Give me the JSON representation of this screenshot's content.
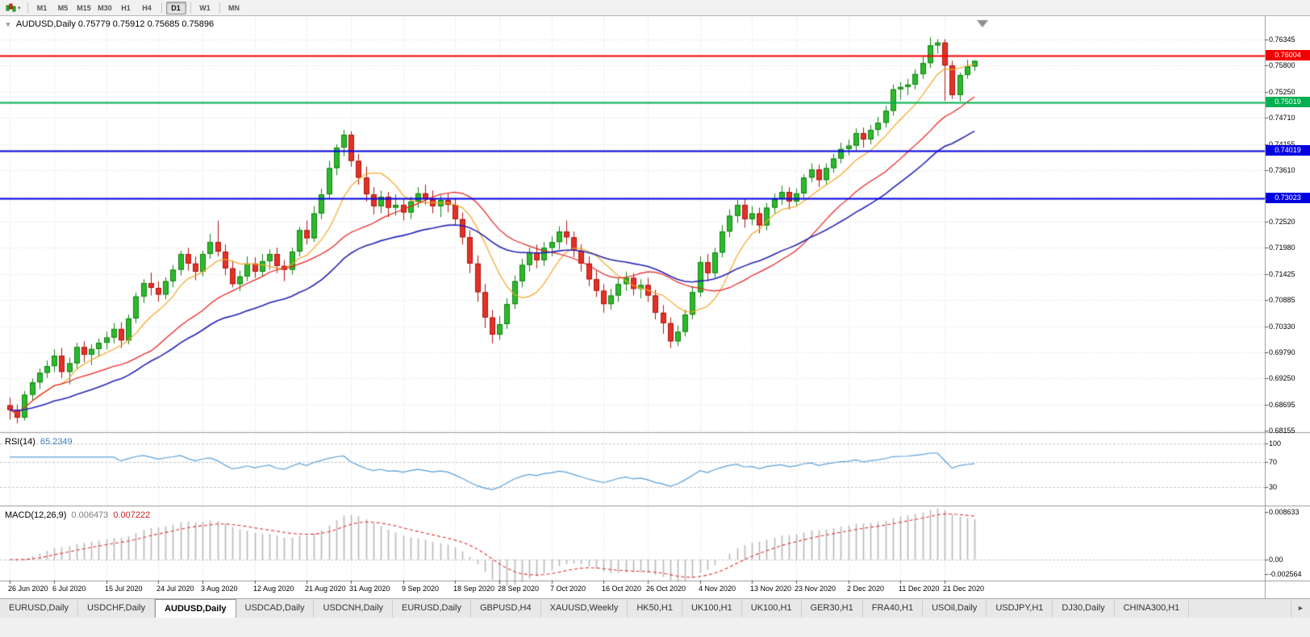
{
  "toolbar": {
    "timeframes": [
      "M1",
      "M5",
      "M15",
      "M30",
      "H1",
      "H4",
      "D1",
      "W1",
      "MN"
    ],
    "active": "D1",
    "chart_menu_caret": "▾"
  },
  "main_chart": {
    "collapse_glyph": "▼",
    "title": "AUDUSD,Daily 0.75779 0.75912 0.75685 0.75896"
  },
  "rsi_panel": {
    "label": "RSI(14)",
    "value": "65.2349"
  },
  "macd_panel": {
    "label": "MACD(12,26,9)",
    "value_main": "0.006473",
    "value_signal": "0.007222"
  },
  "price_scale": {
    "ticks": [
      {
        "label": "0.76345",
        "value": 0.76345
      },
      {
        "label": "0.75800",
        "value": 0.758
      },
      {
        "label": "0.75250",
        "value": 0.7525
      },
      {
        "label": "0.74710",
        "value": 0.7471
      },
      {
        "label": "0.74155",
        "value": 0.74155
      },
      {
        "label": "0.73610",
        "value": 0.7361
      },
      {
        "label": "0.73055",
        "value": 0.73055
      },
      {
        "label": "0.72520",
        "value": 0.7252
      },
      {
        "label": "0.71980",
        "value": 0.7198
      },
      {
        "label": "0.71425",
        "value": 0.71425
      },
      {
        "label": "0.70885",
        "value": 0.70885
      },
      {
        "label": "0.70330",
        "value": 0.7033
      },
      {
        "label": "0.69790",
        "value": 0.6979
      },
      {
        "label": "0.69250",
        "value": 0.6925
      },
      {
        "label": "0.68695",
        "value": 0.68695
      },
      {
        "label": "0.68155",
        "value": 0.68155
      }
    ]
  },
  "h_lines": [
    {
      "label": "0.76004",
      "value": 0.76004,
      "color": "#f20000"
    },
    {
      "label": "0.75019",
      "value": 0.75019,
      "color": "#00b050"
    },
    {
      "label": "0.74019",
      "value": 0.74019,
      "color": "#0000e1"
    },
    {
      "label": "0.73023",
      "value": 0.73023,
      "color": "#0000e1"
    }
  ],
  "time_axis": {
    "labels": [
      "26 Jun 2020",
      "6 Jul 2020",
      "15 Jul 2020",
      "24 Jul 2020",
      "3 Aug 2020",
      "12 Aug 2020",
      "21 Aug 2020",
      "31 Aug 2020",
      "9 Sep 2020",
      "18 Sep 2020",
      "28 Sep 2020",
      "7 Oct 2020",
      "16 Oct 2020",
      "26 Oct 2020",
      "4 Nov 2020",
      "13 Nov 2020",
      "23 Nov 2020",
      "2 Dec 2020",
      "11 Dec 2020",
      "21 Dec 2020"
    ]
  },
  "tabs": {
    "items": [
      "EURUSD,Daily",
      "USDCHF,Daily",
      "AUDUSD,Daily",
      "USDCAD,Daily",
      "USDCNH,Daily",
      "EURUSD,Daily",
      "GBPUSD,H4",
      "XAUUSD,Weekly",
      "HK50,H1",
      "UK100,H1",
      "UK100,H1",
      "GER30,H1",
      "FRA40,H1",
      "USOil,Daily",
      "USDJPY,H1",
      "DJ30,Daily",
      "CHINA300,H1"
    ],
    "active_index": 2,
    "scroll_right_glyph": "►"
  },
  "chart_data": {
    "type": "candlestick",
    "symbol": "AUDUSD",
    "period": "Daily",
    "current_bar": {
      "open": 0.75779,
      "high": 0.75912,
      "low": 0.75685,
      "close": 0.75896
    },
    "y_range": {
      "min": 0.6815,
      "max": 0.768
    },
    "x_label_indices": [
      0,
      6,
      13,
      20,
      26,
      33,
      40,
      46,
      53,
      60,
      66,
      73,
      80,
      86,
      93,
      100,
      106,
      113,
      120,
      126
    ],
    "style": {
      "bull_body": "#2db92d",
      "bull_border": "#128212",
      "bear_body": "#e23228",
      "bear_border": "#b01510",
      "grid": "#dcdcdc",
      "separator": "#9a9a9a",
      "marker": "#909090"
    },
    "moving_averages": [
      {
        "period": 8,
        "method": "sma",
        "color": "#f5a623",
        "width": 1.2
      },
      {
        "period": 20,
        "method": "sma",
        "color": "#e82020",
        "width": 1.2
      },
      {
        "period": 34,
        "method": "ema",
        "color": "#2424b4",
        "width": 1.6
      }
    ],
    "rsi": {
      "period": 14,
      "color": "#5aa0d8",
      "levels": [
        100,
        70,
        30
      ],
      "y_range": {
        "min": 5,
        "max": 112
      }
    },
    "macd": {
      "fast": 12,
      "slow": 26,
      "signal": 9,
      "hist_color": "#b8b8b8",
      "signal_color": "#e03030",
      "y_range": {
        "min": -0.0032,
        "max": 0.009
      },
      "ticks": [
        {
          "label": "0.008633",
          "value": 0.008633
        },
        {
          "label": "0.00",
          "value": 0
        },
        {
          "label": "-0.002564",
          "value": -0.002564
        }
      ]
    },
    "candles": [
      [
        0.6868,
        0.6884,
        0.6838,
        0.6858
      ],
      [
        0.6858,
        0.687,
        0.683,
        0.6842
      ],
      [
        0.6842,
        0.6898,
        0.6836,
        0.689
      ],
      [
        0.689,
        0.6924,
        0.6878,
        0.6916
      ],
      [
        0.6916,
        0.6945,
        0.6902,
        0.6936
      ],
      [
        0.6936,
        0.6962,
        0.6925,
        0.695
      ],
      [
        0.695,
        0.6985,
        0.6938,
        0.6972
      ],
      [
        0.6972,
        0.6988,
        0.6925,
        0.6938
      ],
      [
        0.6938,
        0.6968,
        0.6912,
        0.6956
      ],
      [
        0.6956,
        0.6999,
        0.6944,
        0.699
      ],
      [
        0.699,
        0.7002,
        0.6958,
        0.6974
      ],
      [
        0.6974,
        0.6996,
        0.6952,
        0.6986
      ],
      [
        0.6986,
        0.7008,
        0.697,
        0.6999
      ],
      [
        0.6999,
        0.7022,
        0.6985,
        0.701
      ],
      [
        0.701,
        0.704,
        0.6998,
        0.7028
      ],
      [
        0.7028,
        0.7042,
        0.6988,
        0.7004
      ],
      [
        0.7004,
        0.7058,
        0.6996,
        0.705
      ],
      [
        0.705,
        0.7104,
        0.704,
        0.7096
      ],
      [
        0.7096,
        0.7132,
        0.7082,
        0.7124
      ],
      [
        0.7124,
        0.7146,
        0.7098,
        0.7114
      ],
      [
        0.7114,
        0.7128,
        0.7085,
        0.71
      ],
      [
        0.71,
        0.7136,
        0.709,
        0.7128
      ],
      [
        0.7128,
        0.7162,
        0.7115,
        0.7152
      ],
      [
        0.7152,
        0.7192,
        0.714,
        0.7185
      ],
      [
        0.7185,
        0.7198,
        0.715,
        0.7165
      ],
      [
        0.7165,
        0.718,
        0.713,
        0.7148
      ],
      [
        0.7148,
        0.7192,
        0.7138,
        0.7185
      ],
      [
        0.7185,
        0.7227,
        0.7175,
        0.721
      ],
      [
        0.721,
        0.7255,
        0.718,
        0.719
      ],
      [
        0.719,
        0.7205,
        0.714,
        0.7155
      ],
      [
        0.7155,
        0.717,
        0.7115,
        0.7122
      ],
      [
        0.7122,
        0.715,
        0.7107,
        0.7138
      ],
      [
        0.7138,
        0.718,
        0.7128,
        0.7165
      ],
      [
        0.7165,
        0.7178,
        0.7135,
        0.7148
      ],
      [
        0.7148,
        0.7185,
        0.7138,
        0.717
      ],
      [
        0.717,
        0.7195,
        0.7152,
        0.7185
      ],
      [
        0.7185,
        0.7198,
        0.7145,
        0.716
      ],
      [
        0.716,
        0.7172,
        0.7128,
        0.7152
      ],
      [
        0.7152,
        0.7198,
        0.7142,
        0.719
      ],
      [
        0.719,
        0.7242,
        0.718,
        0.7235
      ],
      [
        0.7235,
        0.7255,
        0.7205,
        0.7218
      ],
      [
        0.7218,
        0.7285,
        0.721,
        0.727
      ],
      [
        0.727,
        0.7322,
        0.7258,
        0.731
      ],
      [
        0.731,
        0.738,
        0.73,
        0.7365
      ],
      [
        0.7365,
        0.7415,
        0.735,
        0.7408
      ],
      [
        0.7408,
        0.7445,
        0.739,
        0.7435
      ],
      [
        0.7435,
        0.7442,
        0.7368,
        0.738
      ],
      [
        0.738,
        0.7395,
        0.733,
        0.7345
      ],
      [
        0.7345,
        0.7368,
        0.7295,
        0.731
      ],
      [
        0.731,
        0.7325,
        0.7268,
        0.7285
      ],
      [
        0.7285,
        0.7318,
        0.727,
        0.7305
      ],
      [
        0.7305,
        0.7315,
        0.7262,
        0.7282
      ],
      [
        0.7282,
        0.731,
        0.7265,
        0.7288
      ],
      [
        0.7288,
        0.7302,
        0.7255,
        0.7272
      ],
      [
        0.7272,
        0.7305,
        0.7258,
        0.7295
      ],
      [
        0.7295,
        0.7325,
        0.7282,
        0.7312
      ],
      [
        0.7312,
        0.733,
        0.7288,
        0.73
      ],
      [
        0.73,
        0.7318,
        0.727,
        0.7285
      ],
      [
        0.7285,
        0.7308,
        0.7262,
        0.7298
      ],
      [
        0.7298,
        0.7312,
        0.7272,
        0.7288
      ],
      [
        0.7288,
        0.7302,
        0.7245,
        0.7258
      ],
      [
        0.7258,
        0.7272,
        0.7205,
        0.722
      ],
      [
        0.722,
        0.7235,
        0.7145,
        0.7165
      ],
      [
        0.7165,
        0.7182,
        0.7085,
        0.7105
      ],
      [
        0.7105,
        0.7122,
        0.703,
        0.7052
      ],
      [
        0.7052,
        0.7068,
        0.6998,
        0.7016
      ],
      [
        0.7016,
        0.7055,
        0.7005,
        0.7038
      ],
      [
        0.7038,
        0.7092,
        0.7028,
        0.708
      ],
      [
        0.708,
        0.714,
        0.707,
        0.7128
      ],
      [
        0.7128,
        0.7175,
        0.7115,
        0.7162
      ],
      [
        0.7162,
        0.7198,
        0.7148,
        0.7188
      ],
      [
        0.7188,
        0.7205,
        0.7155,
        0.7172
      ],
      [
        0.7172,
        0.721,
        0.716,
        0.7198
      ],
      [
        0.7198,
        0.7222,
        0.718,
        0.721
      ],
      [
        0.721,
        0.7243,
        0.7195,
        0.7232
      ],
      [
        0.7232,
        0.7255,
        0.7205,
        0.722
      ],
      [
        0.722,
        0.7232,
        0.7178,
        0.7192
      ],
      [
        0.7192,
        0.7205,
        0.7148,
        0.7165
      ],
      [
        0.7165,
        0.718,
        0.7118,
        0.7132
      ],
      [
        0.7132,
        0.715,
        0.7095,
        0.7108
      ],
      [
        0.7108,
        0.7122,
        0.7062,
        0.708
      ],
      [
        0.708,
        0.7112,
        0.7068,
        0.7098
      ],
      [
        0.7098,
        0.7135,
        0.7085,
        0.7122
      ],
      [
        0.7122,
        0.7148,
        0.7108,
        0.7135
      ],
      [
        0.7135,
        0.7145,
        0.7098,
        0.7112
      ],
      [
        0.7112,
        0.7132,
        0.7092,
        0.712
      ],
      [
        0.712,
        0.7135,
        0.7085,
        0.7098
      ],
      [
        0.7098,
        0.711,
        0.7048,
        0.7062
      ],
      [
        0.7062,
        0.7078,
        0.7018,
        0.704
      ],
      [
        0.704,
        0.7052,
        0.6988,
        0.7002
      ],
      [
        0.7002,
        0.7035,
        0.6992,
        0.7022
      ],
      [
        0.7022,
        0.7068,
        0.7012,
        0.7058
      ],
      [
        0.7058,
        0.7118,
        0.7048,
        0.7105
      ],
      [
        0.7105,
        0.718,
        0.7095,
        0.7168
      ],
      [
        0.7168,
        0.7185,
        0.7128,
        0.7145
      ],
      [
        0.7145,
        0.7198,
        0.7135,
        0.7188
      ],
      [
        0.7188,
        0.7245,
        0.7178,
        0.7232
      ],
      [
        0.7232,
        0.7278,
        0.722,
        0.7265
      ],
      [
        0.7265,
        0.7298,
        0.725,
        0.7288
      ],
      [
        0.7288,
        0.73,
        0.724,
        0.7258
      ],
      [
        0.7258,
        0.7285,
        0.7245,
        0.727
      ],
      [
        0.727,
        0.7282,
        0.7228,
        0.7245
      ],
      [
        0.7245,
        0.7292,
        0.7235,
        0.7282
      ],
      [
        0.7282,
        0.7312,
        0.727,
        0.73
      ],
      [
        0.73,
        0.7328,
        0.7288,
        0.7315
      ],
      [
        0.7315,
        0.7325,
        0.7278,
        0.7295
      ],
      [
        0.7295,
        0.7322,
        0.7285,
        0.7312
      ],
      [
        0.7312,
        0.7352,
        0.7302,
        0.7345
      ],
      [
        0.7345,
        0.7375,
        0.7335,
        0.7362
      ],
      [
        0.7362,
        0.7372,
        0.7325,
        0.734
      ],
      [
        0.734,
        0.7375,
        0.733,
        0.7365
      ],
      [
        0.7365,
        0.7395,
        0.7355,
        0.7385
      ],
      [
        0.7385,
        0.7418,
        0.7375,
        0.7405
      ],
      [
        0.7405,
        0.7425,
        0.7392,
        0.7412
      ],
      [
        0.7412,
        0.7448,
        0.7402,
        0.7438
      ],
      [
        0.7438,
        0.745,
        0.7408,
        0.7425
      ],
      [
        0.7425,
        0.7455,
        0.7415,
        0.7445
      ],
      [
        0.7445,
        0.7472,
        0.7432,
        0.746
      ],
      [
        0.746,
        0.7495,
        0.745,
        0.7485
      ],
      [
        0.7485,
        0.754,
        0.7475,
        0.753
      ],
      [
        0.753,
        0.7545,
        0.7508,
        0.7535
      ],
      [
        0.7535,
        0.7552,
        0.7518,
        0.754
      ],
      [
        0.754,
        0.7572,
        0.753,
        0.7562
      ],
      [
        0.7562,
        0.7598,
        0.7552,
        0.7585
      ],
      [
        0.7585,
        0.7639,
        0.7575,
        0.7622
      ],
      [
        0.7622,
        0.7635,
        0.7605,
        0.7628
      ],
      [
        0.7628,
        0.7635,
        0.7506,
        0.758
      ],
      [
        0.758,
        0.759,
        0.751,
        0.7518
      ],
      [
        0.7518,
        0.7565,
        0.7505,
        0.756
      ],
      [
        0.756,
        0.7592,
        0.7552,
        0.7578
      ],
      [
        0.75779,
        0.75912,
        0.75685,
        0.75896
      ]
    ]
  }
}
